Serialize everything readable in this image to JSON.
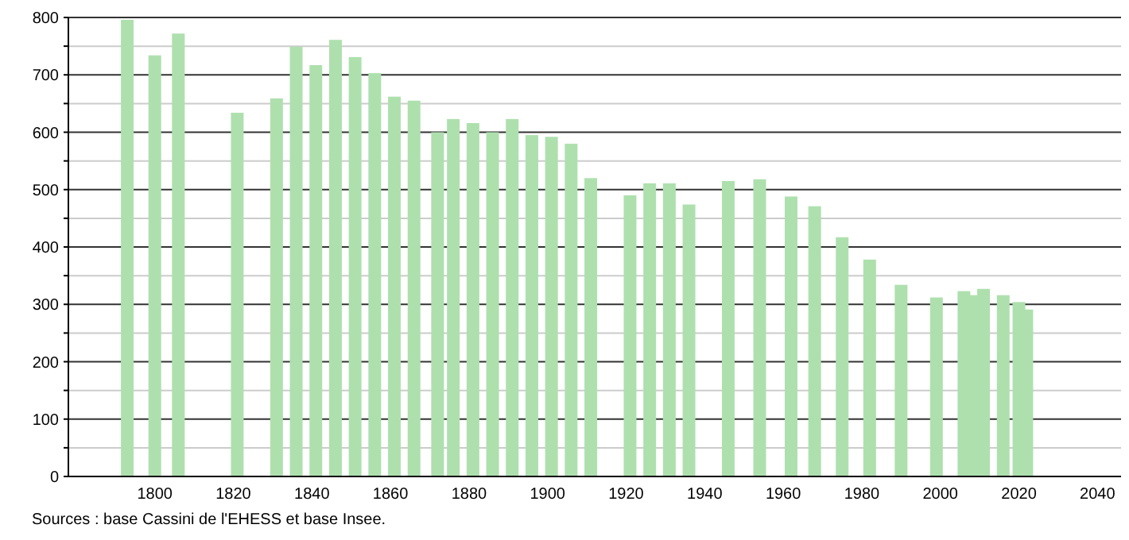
{
  "chart_data": {
    "type": "bar",
    "color": "#aee0ae",
    "x": [
      1793,
      1800,
      1806,
      1821,
      1831,
      1836,
      1841,
      1846,
      1851,
      1856,
      1861,
      1866,
      1872,
      1876,
      1881,
      1886,
      1891,
      1896,
      1901,
      1906,
      1911,
      1921,
      1926,
      1931,
      1936,
      1946,
      1954,
      1962,
      1968,
      1975,
      1982,
      1990,
      1999,
      2006,
      2008,
      2011,
      2016,
      2020,
      2022
    ],
    "values": [
      796,
      734,
      772,
      634,
      659,
      749,
      717,
      761,
      731,
      703,
      662,
      655,
      600,
      623,
      616,
      600,
      623,
      595,
      592,
      580,
      520,
      490,
      511,
      511,
      474,
      515,
      518,
      488,
      471,
      417,
      378,
      334,
      312,
      323,
      316,
      327,
      316,
      304,
      291
    ],
    "xlim": [
      1778,
      2046
    ],
    "xticks": [
      1800,
      1820,
      1840,
      1860,
      1880,
      1900,
      1920,
      1940,
      1960,
      1980,
      2000,
      2020,
      2040
    ],
    "ylim": [
      0,
      800
    ],
    "yticks": [
      0,
      {
        "value": 50,
        "label": null
      },
      100,
      {
        "value": 150,
        "label": null
      },
      200,
      {
        "value": 250,
        "label": null
      },
      300,
      {
        "value": 350,
        "label": null
      },
      400,
      {
        "value": 450,
        "label": null
      },
      500,
      {
        "value": 550,
        "label": null
      },
      600,
      {
        "value": 650,
        "label": null
      },
      700,
      {
        "value": 750,
        "label": null
      },
      800
    ],
    "grid": "y",
    "annotations": [
      "Sources : base Cassini de l'EHESS et base Insee."
    ]
  }
}
